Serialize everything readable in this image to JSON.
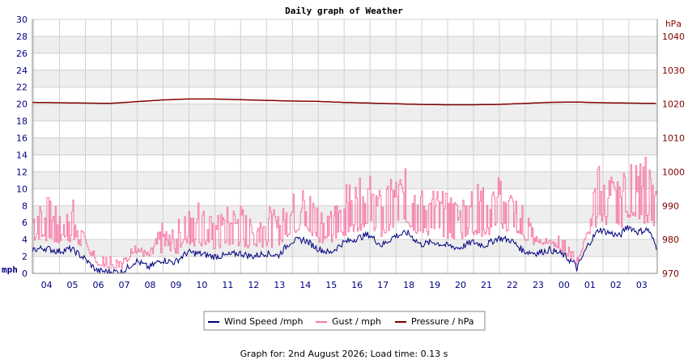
{
  "chart_data": {
    "type": "line",
    "title": "Daily graph of Weather",
    "left_axis": {
      "unit": "mph",
      "ylim": [
        0,
        30
      ],
      "ticks": [
        0,
        2,
        4,
        6,
        8,
        10,
        12,
        14,
        16,
        18,
        20,
        22,
        24,
        26,
        28,
        30
      ],
      "color": "#000080"
    },
    "right_axis": {
      "unit": "hPa",
      "ylim": [
        970,
        1045
      ],
      "ticks": [
        970,
        980,
        990,
        1000,
        1010,
        1020,
        1030,
        1040
      ],
      "color": "#800000"
    },
    "x_axis": {
      "tick_labels": [
        "04",
        "05",
        "06",
        "07",
        "08",
        "09",
        "10",
        "11",
        "12",
        "13",
        "14",
        "15",
        "16",
        "17",
        "18",
        "19",
        "20",
        "21",
        "22",
        "23",
        "00",
        "01",
        "02",
        "03"
      ],
      "range_hours": [
        0,
        24.15
      ]
    },
    "grid": true,
    "legend_position": "bottom-center",
    "series": [
      {
        "name": "Wind Speed /mph",
        "axis": "left",
        "color": "#000080",
        "x_hours": [
          0,
          0.5,
          1,
          1.5,
          2,
          2.5,
          3,
          3.5,
          4,
          4.5,
          5,
          5.5,
          6,
          6.5,
          7,
          7.5,
          8,
          8.5,
          9,
          9.5,
          10,
          10.5,
          11,
          11.5,
          12,
          12.5,
          13,
          13.5,
          14,
          14.5,
          15,
          15.5,
          16,
          16.5,
          17,
          17.5,
          18,
          18.5,
          19,
          19.5,
          20,
          20.5,
          21,
          21.5,
          22,
          22.5,
          23,
          23.5,
          24
        ],
        "values": [
          2.8,
          3.0,
          2.6,
          2.9,
          1.8,
          0.3,
          0.2,
          0.2,
          1.5,
          0.7,
          1.6,
          1.3,
          2.5,
          2.3,
          2.0,
          2.1,
          2.4,
          2.0,
          2.4,
          2.1,
          3.8,
          4.0,
          3.0,
          2.4,
          3.6,
          4.1,
          4.6,
          3.3,
          4.4,
          4.8,
          3.4,
          3.7,
          3.3,
          3.0,
          3.7,
          3.3,
          4.2,
          3.9,
          2.6,
          2.4,
          2.8,
          2.2,
          1.0,
          0.3,
          0.4,
          0.4,
          0.8,
          0.3,
          0.2
        ]
      },
      {
        "name": "Gust / mph",
        "axis": "left",
        "color": "#f77aa8",
        "x_hours": [
          0,
          0.5,
          1,
          1.5,
          2,
          2.5,
          3,
          3.5,
          4,
          4.5,
          5,
          5.5,
          6,
          6.5,
          7,
          7.5,
          8,
          8.5,
          9,
          9.5,
          10,
          10.5,
          11,
          11.5,
          12,
          12.5,
          13,
          13.5,
          14,
          14.5,
          15,
          15.5,
          16,
          16.5,
          17,
          17.5,
          18,
          18.5,
          19,
          19.5,
          20,
          20.5,
          21,
          21.5,
          22,
          22.5,
          23,
          23.5,
          24
        ],
        "values": [
          8.5,
          9.5,
          7.5,
          9.5,
          4.5,
          1.0,
          0.5,
          0.5,
          3.5,
          2.5,
          6.0,
          5.0,
          10.5,
          8.5,
          6.5,
          8.0,
          8.5,
          6.0,
          8.5,
          7.0,
          9.5,
          10.5,
          9.0,
          7.5,
          10.5,
          11.0,
          12.0,
          9.5,
          12.0,
          12.5,
          10.0,
          10.5,
          9.5,
          9.0,
          11.5,
          10.0,
          11.5,
          10.5,
          8.0,
          4.0,
          3.5,
          2.5,
          1.0,
          0.5,
          1.0,
          0.8,
          1.5,
          0.5,
          0.3
        ]
      },
      {
        "name": "Pressure / hPa",
        "axis": "right",
        "color": "#800000",
        "x_hours": [
          0,
          1,
          2,
          3,
          4,
          5,
          6,
          7,
          8,
          9,
          10,
          11,
          12,
          13,
          14,
          15,
          16,
          17,
          18,
          19,
          20,
          21,
          22,
          23,
          24
        ],
        "values": [
          1020.5,
          1020.4,
          1020.3,
          1020.2,
          1020.7,
          1021.2,
          1021.5,
          1021.5,
          1021.3,
          1021.1,
          1020.9,
          1020.8,
          1020.5,
          1020.3,
          1020.1,
          1019.9,
          1019.8,
          1019.8,
          1019.9,
          1020.2,
          1020.5,
          1020.6,
          1020.4,
          1020.3,
          1020.2
        ]
      }
    ],
    "late_wind": {
      "x_hours": [
        21.0,
        21.5,
        21.9,
        22.3,
        22.7,
        23.0,
        23.4,
        23.8,
        24.15
      ],
      "values": [
        0.3,
        3.5,
        5.2,
        4.8,
        4.4,
        5.6,
        4.9,
        5.2,
        2.9
      ]
    },
    "late_gust": {
      "x_hours": [
        21.0,
        21.5,
        21.9,
        22.3,
        22.7,
        23.0,
        23.4,
        23.8,
        24.15
      ],
      "values": [
        0.5,
        6.0,
        14.5,
        12.0,
        10.5,
        17.2,
        12.5,
        15.0,
        9.0
      ]
    }
  },
  "footer": {
    "text": "Graph for: 2nd August 2026; Load time: 0.13 s"
  }
}
